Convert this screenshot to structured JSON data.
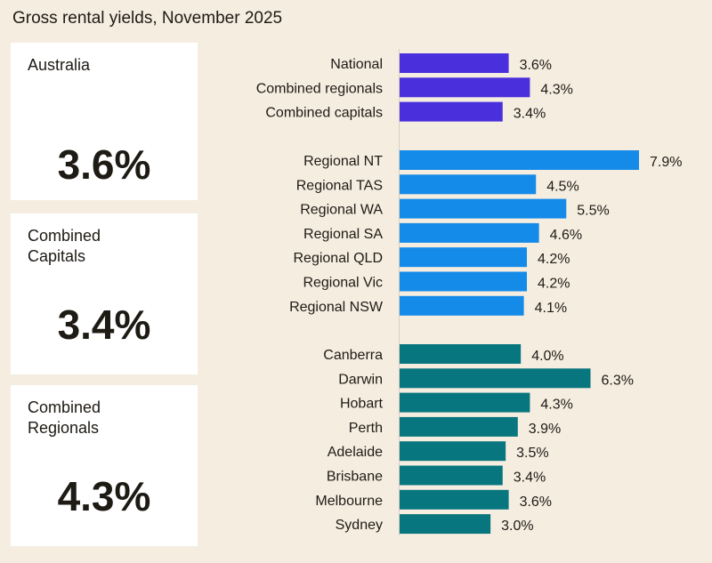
{
  "title": "Gross rental yields, November 2025",
  "cards": [
    {
      "label": "Australia",
      "value": "3.6%"
    },
    {
      "label": "Combined\nCapitals",
      "value": "3.4%"
    },
    {
      "label": "Combined\nRegionals",
      "value": "4.3%"
    }
  ],
  "colors": {
    "summary": "#4a2fdc",
    "regional": "#148be8",
    "capital": "#08767e",
    "background": "#f6ede1"
  },
  "chart_data": {
    "type": "bar",
    "orientation": "horizontal",
    "title": "Gross rental yields, November 2025",
    "unit": "%",
    "xlim": [
      0,
      8
    ],
    "grid": false,
    "groups": [
      {
        "color": "#4a2fdc",
        "categories": [
          "National",
          "Combined regionals",
          "Combined capitals"
        ],
        "values": [
          3.6,
          4.3,
          3.4
        ],
        "labels": [
          "3.6%",
          "4.3%",
          "3.4%"
        ]
      },
      {
        "color": "#148be8",
        "categories": [
          "Regional NT",
          "Regional TAS",
          "Regional WA",
          "Regional SA",
          "Regional QLD",
          "Regional Vic",
          "Regional NSW"
        ],
        "values": [
          7.9,
          4.5,
          5.5,
          4.6,
          4.2,
          4.2,
          4.1
        ],
        "labels": [
          "7.9%",
          "4.5%",
          "5.5%",
          "4.6%",
          "4.2%",
          "4.2%",
          "4.1%"
        ]
      },
      {
        "color": "#08767e",
        "categories": [
          "Canberra",
          "Darwin",
          "Hobart",
          "Perth",
          "Adelaide",
          "Brisbane",
          "Melbourne",
          "Sydney"
        ],
        "values": [
          4.0,
          6.3,
          4.3,
          3.9,
          3.5,
          3.4,
          3.6,
          3.0
        ],
        "labels": [
          "4.0%",
          "6.3%",
          "4.3%",
          "3.9%",
          "3.5%",
          "3.4%",
          "3.6%",
          "3.0%"
        ]
      }
    ]
  }
}
